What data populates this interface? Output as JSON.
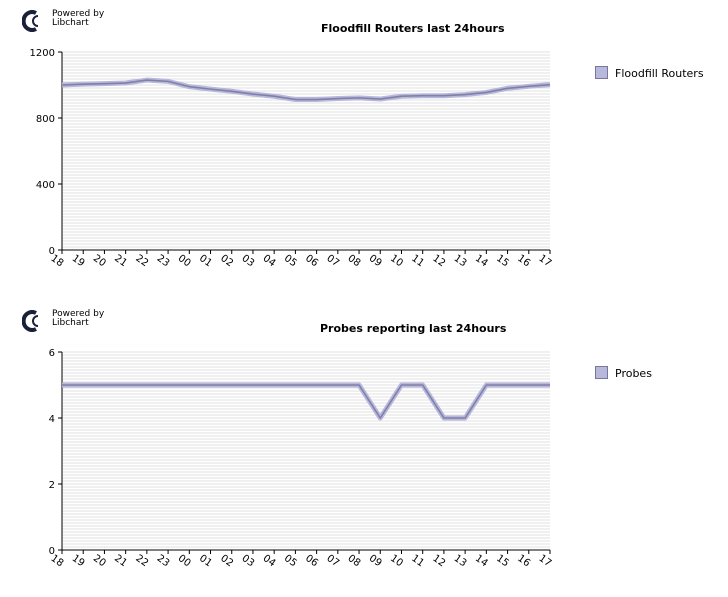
{
  "logo": {
    "line1": "Powered by",
    "line2": "Libchart"
  },
  "chart_data": [
    {
      "type": "line",
      "title": "Floodfill Routers last 24hours",
      "xlabel": "",
      "ylabel": "",
      "categories": [
        "18",
        "19",
        "20",
        "21",
        "22",
        "23",
        "00",
        "01",
        "02",
        "03",
        "04",
        "05",
        "06",
        "07",
        "08",
        "09",
        "10",
        "11",
        "12",
        "13",
        "14",
        "15",
        "16",
        "17"
      ],
      "yticks": [
        "0",
        "400",
        "800",
        "1200"
      ],
      "ylim": [
        0,
        1200
      ],
      "grid": true,
      "legend_position": "right",
      "series": [
        {
          "name": "Floodfill Routers",
          "values": [
            1000,
            1005,
            1008,
            1012,
            1030,
            1022,
            990,
            975,
            962,
            945,
            932,
            912,
            912,
            918,
            922,
            915,
            932,
            935,
            935,
            942,
            955,
            980,
            992,
            1002
          ]
        }
      ],
      "colors": {
        "line": "#7f7fa8",
        "swatch": "#b8b8dc"
      }
    },
    {
      "type": "line",
      "title": "Probes reporting last 24hours",
      "xlabel": "",
      "ylabel": "",
      "categories": [
        "18",
        "19",
        "20",
        "21",
        "22",
        "23",
        "00",
        "01",
        "02",
        "03",
        "04",
        "05",
        "06",
        "07",
        "08",
        "09",
        "10",
        "11",
        "12",
        "13",
        "14",
        "15",
        "16",
        "17"
      ],
      "yticks": [
        "0",
        "2",
        "4",
        "6"
      ],
      "ylim": [
        0,
        6
      ],
      "grid": true,
      "legend_position": "right",
      "series": [
        {
          "name": "Probes",
          "values": [
            5,
            5,
            5,
            5,
            5,
            5,
            5,
            5,
            5,
            5,
            5,
            5,
            5,
            5,
            5,
            4,
            5,
            5,
            4,
            4,
            5,
            5,
            5,
            5
          ]
        }
      ],
      "colors": {
        "line": "#7f7fa8",
        "swatch": "#b8b8dc"
      }
    }
  ]
}
